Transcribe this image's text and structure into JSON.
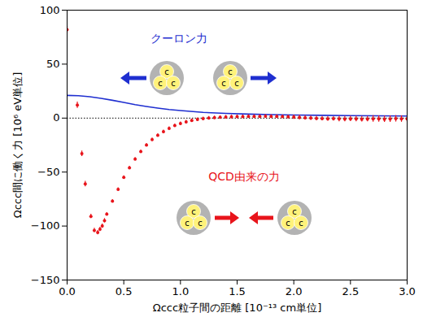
{
  "chart_data": {
    "type": "line",
    "x_label": "Ωccc粒子間の距離 [10⁻¹³ cm単位]",
    "y_label": "Ωccc間に働く力 [10⁶ eV単位]",
    "xlim": [
      0,
      3
    ],
    "ylim": [
      -150,
      100
    ],
    "xticks": [
      {
        "value": 0,
        "label": "0.0"
      },
      {
        "value": 0.5,
        "label": "0.5"
      },
      {
        "value": 1,
        "label": "1.0"
      },
      {
        "value": 1.5,
        "label": "1.5"
      },
      {
        "value": 2,
        "label": "2.0"
      },
      {
        "value": 2.5,
        "label": "2.5"
      },
      {
        "value": 3,
        "label": "3.0"
      }
    ],
    "yticks": [
      -150,
      -100,
      -50,
      0,
      50,
      100
    ],
    "baseline": 0,
    "particle_label": "c",
    "series": [
      {
        "name": "クーロン力",
        "type": "line",
        "color": "#1f2fd0",
        "x": [
          0,
          0.1,
          0.2,
          0.3,
          0.4,
          0.5,
          0.6,
          0.7,
          0.8,
          0.9,
          1.0,
          1.2,
          1.4,
          1.6,
          1.8,
          2.0,
          2.25,
          2.5,
          2.75,
          3.0
        ],
        "values": [
          21,
          20.7,
          19.8,
          18.3,
          16.5,
          14.5,
          12.5,
          10.8,
          9.3,
          8.0,
          7.0,
          5.3,
          4.4,
          3.7,
          3.2,
          2.9,
          2.6,
          2.3,
          2.1,
          1.9
        ]
      },
      {
        "name": "QCD由来の力",
        "type": "scatter",
        "color": "#e8141b",
        "marker": "circle",
        "x": [
          0,
          0.09,
          0.13,
          0.16,
          0.21,
          0.24,
          0.27,
          0.29,
          0.31,
          0.33,
          0.35,
          0.4,
          0.45,
          0.5,
          0.55,
          0.6,
          0.65,
          0.7,
          0.75,
          0.8,
          0.85,
          0.9,
          0.95,
          1.0,
          1.05,
          1.1,
          1.15,
          1.2,
          1.25,
          1.3,
          1.35,
          1.4,
          1.45,
          1.5,
          1.55,
          1.6,
          1.65,
          1.7,
          1.75,
          1.8,
          1.85,
          1.9,
          1.95,
          2.0,
          2.05,
          2.1,
          2.15,
          2.2,
          2.25,
          2.3,
          2.35,
          2.4,
          2.45,
          2.5,
          2.55,
          2.6,
          2.65,
          2.7,
          2.75,
          2.8,
          2.85,
          2.9,
          2.95,
          3.0
        ],
        "values": [
          82,
          12,
          -33,
          -61,
          -91,
          -104,
          -106,
          -103,
          -100,
          -95,
          -89,
          -77,
          -66,
          -55,
          -46,
          -38,
          -31,
          -25,
          -20,
          -16,
          -12.5,
          -9.5,
          -7,
          -5,
          -3.5,
          -2.2,
          -1.2,
          -0.5,
          0,
          0.4,
          0.7,
          1.0,
          1.2,
          1.3,
          1.4,
          1.5,
          1.5,
          1.6,
          1.8,
          1.6,
          1.5,
          1.3,
          1.1,
          0.9,
          0.6,
          0.3,
          0,
          -0.3,
          -0.5,
          -0.7,
          -0.6,
          -0.8,
          -0.9,
          -0.7,
          -0.8,
          -1.0,
          -0.9,
          -0.7,
          -0.8,
          -1.0,
          -0.9,
          -0.6,
          -0.8,
          -0.7
        ],
        "errors": [
          3,
          3,
          2.5,
          2.5,
          2,
          2,
          2,
          2,
          2,
          2,
          1.5,
          1.5,
          1.5,
          1.5,
          1.5,
          1.5,
          1.5,
          1.5,
          1.5,
          1.5,
          1.5,
          1.5,
          1.5,
          1.5,
          1.5,
          1.5,
          1.5,
          1.5,
          1.5,
          1.5,
          1.5,
          1.5,
          1.5,
          1.5,
          1.5,
          1.5,
          1.5,
          1.5,
          1.5,
          1.5,
          1.5,
          1.5,
          1.5,
          2,
          2,
          2,
          2,
          2,
          2,
          2,
          2,
          2.5,
          2.5,
          2.5,
          2.5,
          2.5,
          2.5,
          3,
          3,
          3,
          3,
          3,
          3,
          3
        ]
      }
    ]
  }
}
